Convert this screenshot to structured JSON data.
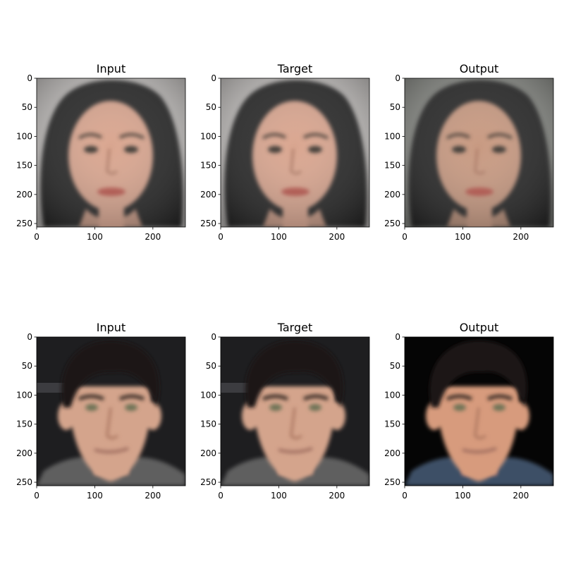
{
  "chart_data": [
    {
      "type": "image",
      "title": "Input",
      "xticks": [
        0,
        100,
        200
      ],
      "yticks": [
        0,
        50,
        100,
        150,
        200,
        250
      ],
      "xlim": [
        0,
        256
      ],
      "ylim": [
        256,
        0
      ],
      "subject": "face-female",
      "variant": "input"
    },
    {
      "type": "image",
      "title": "Target",
      "xticks": [
        0,
        100,
        200
      ],
      "yticks": [
        0,
        50,
        100,
        150,
        200,
        250
      ],
      "xlim": [
        0,
        256
      ],
      "ylim": [
        256,
        0
      ],
      "subject": "face-female",
      "variant": "target"
    },
    {
      "type": "image",
      "title": "Output",
      "xticks": [
        0,
        100,
        200
      ],
      "yticks": [
        0,
        50,
        100,
        150,
        200,
        250
      ],
      "xlim": [
        0,
        256
      ],
      "ylim": [
        256,
        0
      ],
      "subject": "face-female",
      "variant": "output"
    },
    {
      "type": "image",
      "title": "Input",
      "xticks": [
        0,
        100,
        200
      ],
      "yticks": [
        0,
        50,
        100,
        150,
        200,
        250
      ],
      "xlim": [
        0,
        256
      ],
      "ylim": [
        256,
        0
      ],
      "subject": "face-male",
      "variant": "input"
    },
    {
      "type": "image",
      "title": "Target",
      "xticks": [
        0,
        100,
        200
      ],
      "yticks": [
        0,
        50,
        100,
        150,
        200,
        250
      ],
      "xlim": [
        0,
        256
      ],
      "ylim": [
        256,
        0
      ],
      "subject": "face-male",
      "variant": "target"
    },
    {
      "type": "image",
      "title": "Output",
      "xticks": [
        0,
        100,
        200
      ],
      "yticks": [
        0,
        50,
        100,
        150,
        200,
        250
      ],
      "xlim": [
        0,
        256
      ],
      "ylim": [
        256,
        0
      ],
      "subject": "face-male",
      "variant": "output"
    }
  ],
  "palette": {
    "female": {
      "bg_input": "#c9c6c4",
      "bg_output": "#8f918c",
      "hair": "#2a2a2c",
      "skin": "#d9a690",
      "skin_output": "#c89a82",
      "lips": "#b8574e",
      "eyes": "#3d3833",
      "brow": "#4a3c34"
    },
    "male": {
      "bg_input": "#1e1e20",
      "bg_output": "#050505",
      "hair": "#1a1614",
      "skin": "#d4a48c",
      "skin_output": "#d79b7d",
      "shirt": "#5e5e5e",
      "shirt_output": "#3d4f66",
      "lips": "#9c6a5d",
      "eyes": "#6f7357",
      "brow": "#3b2e26"
    }
  }
}
